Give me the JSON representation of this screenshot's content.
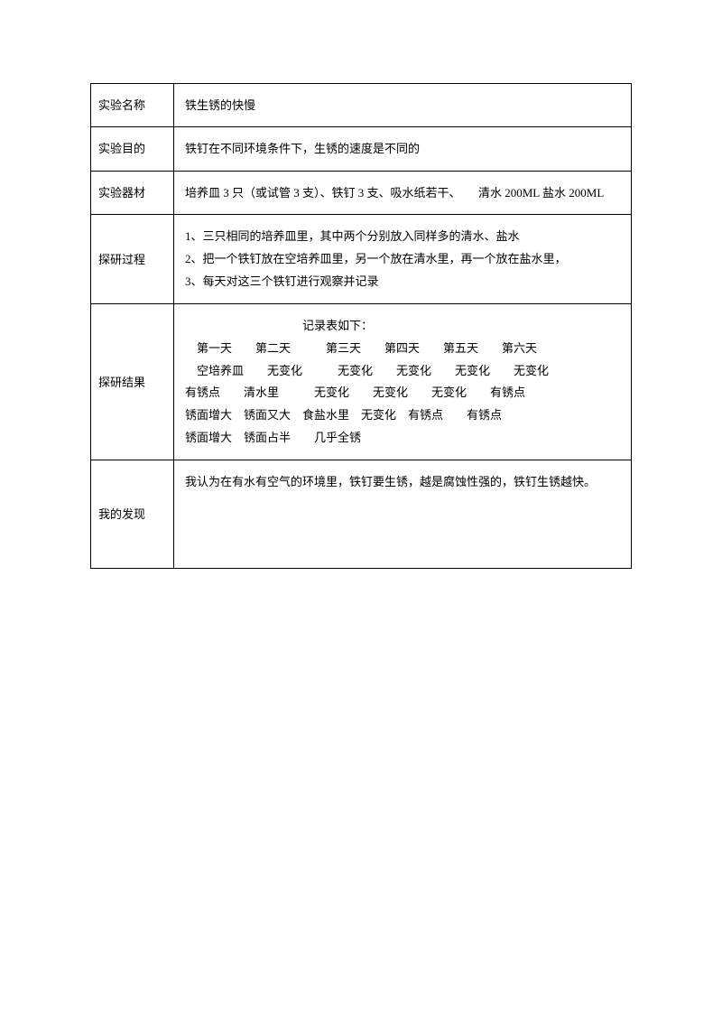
{
  "rows": {
    "name": {
      "label": "实验名称",
      "content": "铁生锈的快慢"
    },
    "purpose": {
      "label": "实验目的",
      "content": "铁钉在不同环境条件下，生锈的速度是不同的"
    },
    "equipment": {
      "label": "实验器材",
      "content": "培养皿 3 只（或试管 3 支）、铁钉 3 支、吸水纸若干、　　清水 200ML 盐水 200ML"
    },
    "process": {
      "label": "探研过程",
      "line1": "1、三只相同的培养皿里，其中两个分别放入同样多的清水、盐水",
      "line2": "2、把一个铁钉放在空培养皿里，另一个放在清水里，再一个放在盐水里，",
      "line3": "3、每天对这三个铁钉进行观察并记录"
    },
    "result": {
      "label": "探研结果",
      "title": "记录表如下：",
      "line1": "　第一天　　第二天　　　第三天　　第四天　　第五天　　第六天",
      "line2": "　空培养皿　　无变化　　　无变化　　无变化　　无变化　　无变化",
      "line3": "有锈点　　清水里　　　无变化　　无变化　　无变化　　有锈点",
      "line4": "锈面增大　锈面又大　食盐水里　无变化　有锈点　　有锈点",
      "line5": "锈面增大　锈面占半　　几乎全锈"
    },
    "finding": {
      "label": "我的发现",
      "content": "我认为在有水有空气的环境里，铁钉要生锈，越是腐蚀性强的，铁钉生锈越快。"
    }
  }
}
